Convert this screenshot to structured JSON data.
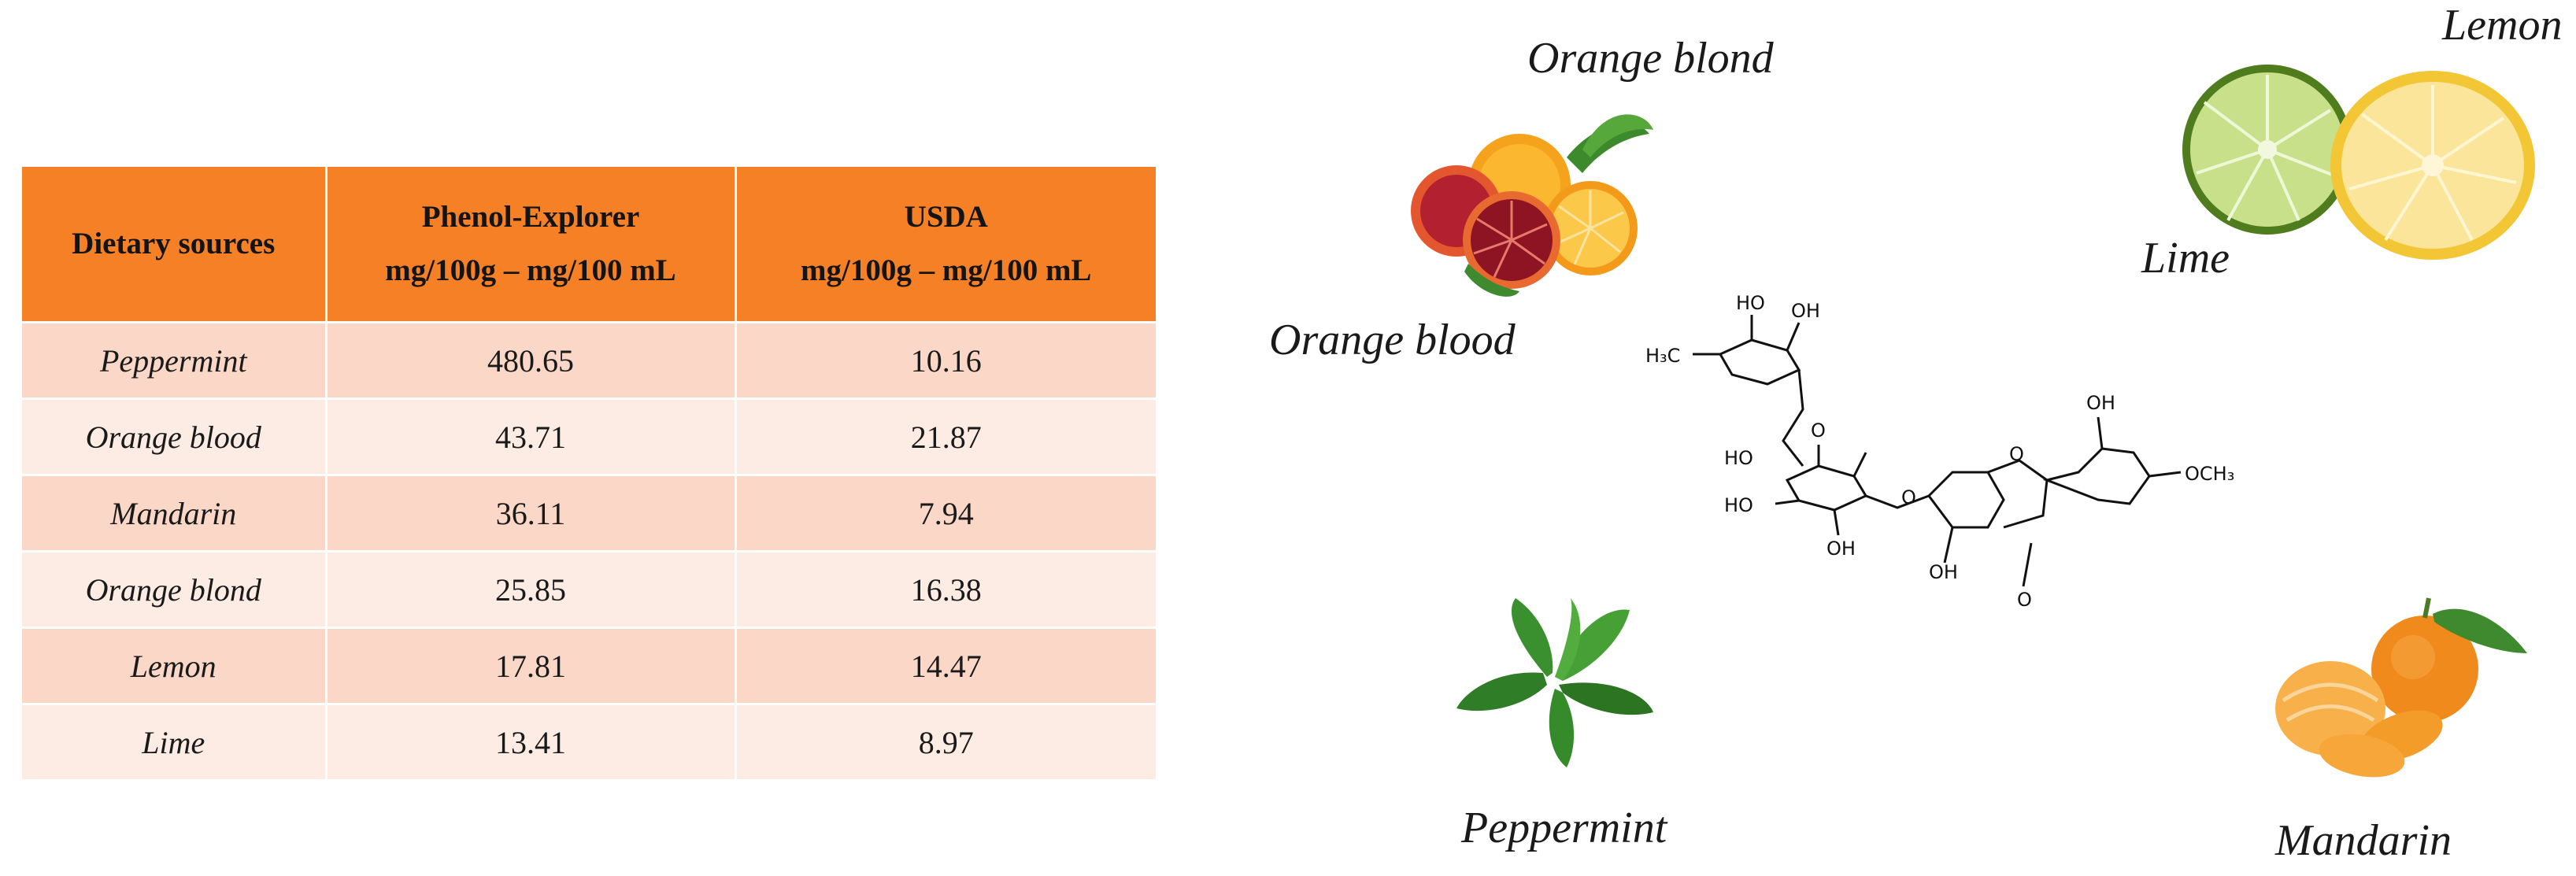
{
  "table": {
    "headers": [
      {
        "line1": "Dietary sources",
        "line2": ""
      },
      {
        "line1": "Phenol-Explorer",
        "line2": "mg/100g – mg/100 mL"
      },
      {
        "line1": "USDA",
        "line2": "mg/100g – mg/100 mL"
      }
    ],
    "rows": [
      {
        "source": "Peppermint",
        "phenol_explorer": "480.65",
        "usda": "10.16"
      },
      {
        "source": "Orange blood",
        "phenol_explorer": "43.71",
        "usda": "21.87"
      },
      {
        "source": "Mandarin",
        "phenol_explorer": "36.11",
        "usda": "7.94"
      },
      {
        "source": "Orange blond",
        "phenol_explorer": "25.85",
        "usda": "16.38"
      },
      {
        "source": "Lemon",
        "phenol_explorer": "17.81",
        "usda": "14.47"
      },
      {
        "source": "Lime",
        "phenol_explorer": "13.41",
        "usda": "8.97"
      }
    ]
  },
  "labels": {
    "orange_blond": "Orange blond",
    "orange_blood": "Orange blood",
    "lemon": "Lemon",
    "lime": "Lime",
    "peppermint": "Peppermint",
    "mandarin": "Mandarin"
  },
  "molecule": {
    "oh": "OH",
    "ho": "HO",
    "ch3": "H₃C",
    "och3": "OCH₃",
    "o": "O"
  },
  "colors": {
    "header": "#f58025",
    "row_odd": "#fad7c6",
    "row_even": "#fdece4",
    "orange": "#f7a21b",
    "blood_orange": "#a3182a",
    "lemon": "#f6d65a",
    "lime": "#a9cc5c",
    "mint": "#3e8a2e"
  },
  "icons": [
    "blood-orange-icon",
    "orange-icon",
    "lemon-icon",
    "lime-icon",
    "peppermint-icon",
    "mandarin-icon",
    "hesperidin-structure"
  ]
}
